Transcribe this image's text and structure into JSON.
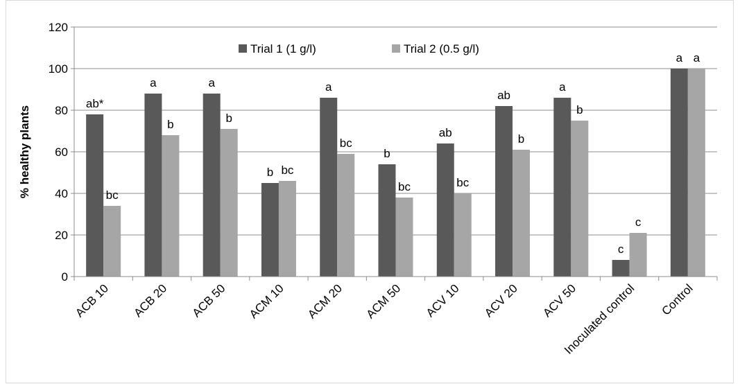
{
  "chart_data": {
    "type": "bar",
    "title": "",
    "xlabel": "",
    "ylabel": "% healthy plants",
    "ylim": [
      0,
      120
    ],
    "yticks": [
      0,
      20,
      40,
      60,
      80,
      100,
      120
    ],
    "grid": true,
    "legend_position": "top-center",
    "categories": [
      "ACB 10",
      "ACB 20",
      "ACB 50",
      "ACM 10",
      "ACM 20",
      "ACM 50",
      "ACV 10",
      "ACV 20",
      "ACV 50",
      "Inoculated control",
      "Control"
    ],
    "series": [
      {
        "name": "Trial 1 (1 g/l)",
        "color": "#595959",
        "values": [
          78,
          88,
          88,
          45,
          86,
          54,
          64,
          82,
          86,
          8,
          100
        ],
        "labels": [
          "ab*",
          "a",
          "a",
          "b",
          "a",
          "b",
          "ab",
          "ab",
          "a",
          "c",
          "a"
        ]
      },
      {
        "name": "Trial 2 (0.5 g/l)",
        "color": "#a6a6a6",
        "values": [
          34,
          68,
          71,
          46,
          59,
          38,
          40,
          61,
          75,
          21,
          100
        ],
        "labels": [
          "bc",
          "b",
          "b",
          "bc",
          "bc",
          "bc",
          "bc",
          "b",
          "b",
          "c",
          "a"
        ]
      }
    ]
  }
}
